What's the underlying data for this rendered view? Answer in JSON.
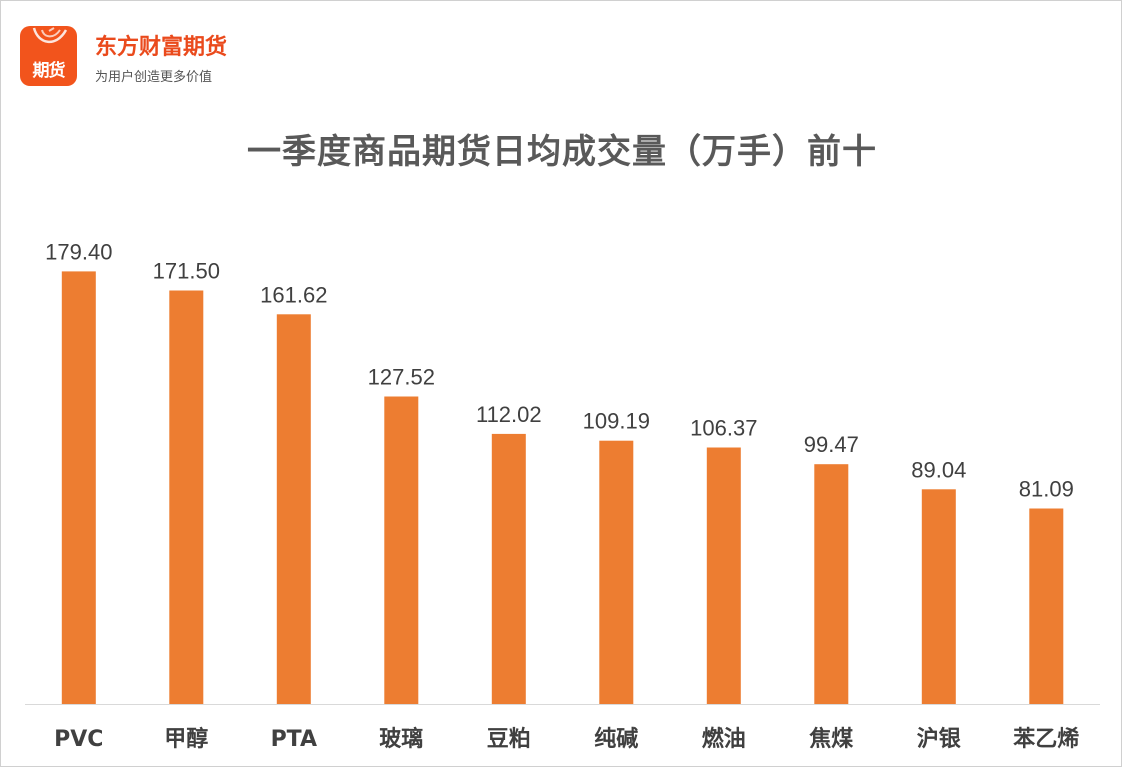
{
  "brand": {
    "logo_text": "期货",
    "name": "东方财富期货",
    "slogan": "为用户创造更多价值",
    "color": "#f2541c"
  },
  "chart_data": {
    "type": "bar",
    "title": "一季度商品期货日均成交量（万手）前十",
    "categories": [
      "PVC",
      "甲醇",
      "PTA",
      "玻璃",
      "豆粕",
      "纯碱",
      "燃油",
      "焦煤",
      "沪银",
      "苯乙烯"
    ],
    "values": [
      179.4,
      171.5,
      161.62,
      127.52,
      112.02,
      109.19,
      106.37,
      99.47,
      89.04,
      81.09
    ],
    "value_labels": [
      "179.40",
      "171.50",
      "161.62",
      "127.52",
      "112.02",
      "109.19",
      "106.37",
      "99.47",
      "89.04",
      "81.09"
    ],
    "bar_color": "#ed7d31",
    "ylim": [
      0,
      180
    ],
    "grid": false,
    "legend": "none"
  }
}
